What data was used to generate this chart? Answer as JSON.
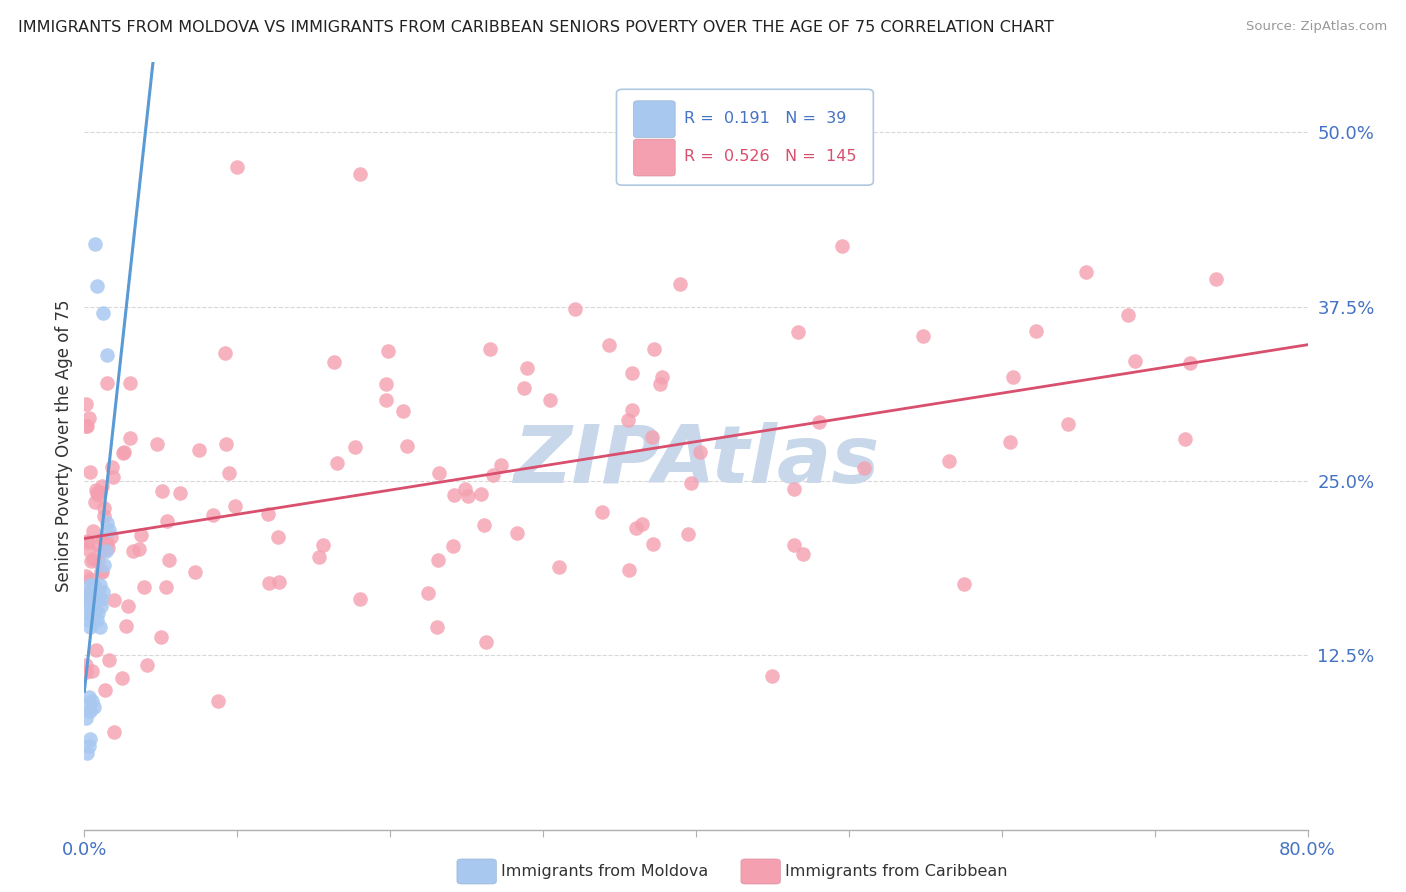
{
  "title": "IMMIGRANTS FROM MOLDOVA VS IMMIGRANTS FROM CARIBBEAN SENIORS POVERTY OVER THE AGE OF 75 CORRELATION CHART",
  "source": "Source: ZipAtlas.com",
  "ylabel": "Seniors Poverty Over the Age of 75",
  "xlim": [
    0.0,
    0.8
  ],
  "ylim": [
    0.0,
    0.55
  ],
  "xtick_positions": [
    0.0,
    0.1,
    0.2,
    0.3,
    0.4,
    0.5,
    0.6,
    0.7,
    0.8
  ],
  "xticklabels": [
    "0.0%",
    "",
    "",
    "",
    "",
    "",
    "",
    "",
    "80.0%"
  ],
  "ytick_positions": [
    0.0,
    0.125,
    0.25,
    0.375,
    0.5
  ],
  "ytick_labels": [
    "",
    "12.5%",
    "25.0%",
    "37.5%",
    "50.0%"
  ],
  "moldova_R": 0.191,
  "moldova_N": 39,
  "caribbean_R": 0.526,
  "caribbean_N": 145,
  "moldova_color": "#a8c8f0",
  "moldova_line_color": "#5b9bd5",
  "caribbean_color": "#f4a0b0",
  "caribbean_line_color": "#d94f6e",
  "bg_color": "#ffffff",
  "grid_color": "#d8d8d8",
  "watermark_text": "ZIPAtlas",
  "watermark_color": "#c8d8ea"
}
